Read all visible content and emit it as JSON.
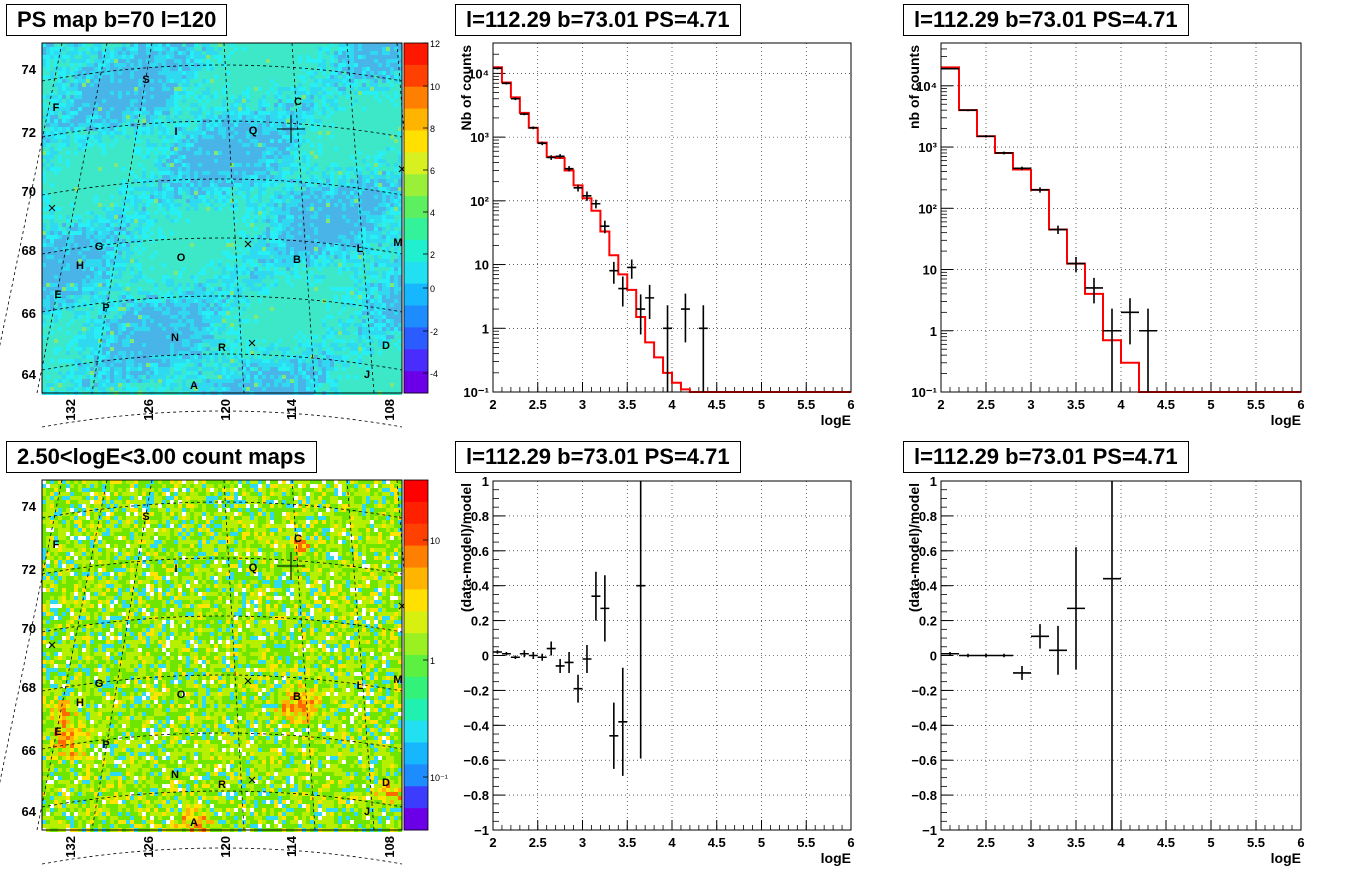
{
  "maps": [
    {
      "title": "PS map b=70 l=120",
      "lat_ticks": [
        "74",
        "72",
        "70",
        "68",
        "66",
        "64"
      ],
      "lon_ticks": [
        "132",
        "126",
        "120",
        "114",
        "108"
      ],
      "colorbar_ticks": [
        "12",
        "10",
        "8",
        "6",
        "4",
        "2",
        "0",
        "-2",
        "-4"
      ],
      "source_labels": [
        "S",
        "F",
        "C",
        "I",
        "Q",
        "G",
        "H",
        "O",
        "B",
        "L",
        "M",
        "E",
        "P",
        "N",
        "R",
        "D",
        "A",
        "J"
      ],
      "palette": "blue-cyan-red"
    },
    {
      "title": "2.50<logE<3.00 count maps",
      "lat_ticks": [
        "74",
        "72",
        "70",
        "68",
        "66",
        "64"
      ],
      "lon_ticks": [
        "132",
        "126",
        "120",
        "114",
        "108"
      ],
      "colorbar_ticks": [
        "10",
        "1",
        "10⁻¹"
      ],
      "source_labels": [
        "S",
        "F",
        "C",
        "I",
        "Q",
        "G",
        "H",
        "O",
        "B",
        "L",
        "M",
        "E",
        "P",
        "N",
        "R",
        "D",
        "A",
        "J"
      ],
      "palette": "green-yellow-red"
    }
  ],
  "chart_data": [
    {
      "type": "line",
      "title": "l=112.29 b=73.01 PS=4.71",
      "xlabel": "logE",
      "ylabel": "Nb of counts",
      "xlim": [
        2,
        6
      ],
      "ylim": [
        0.1,
        30000
      ],
      "yscale": "log",
      "x_ticks": [
        "2",
        "2.5",
        "3",
        "3.5",
        "4",
        "4.5",
        "5",
        "5.5",
        "6"
      ],
      "y_ticks": [
        {
          "v": 0.1,
          "label": "10⁻¹"
        },
        {
          "v": 1,
          "label": "1"
        },
        {
          "v": 10,
          "label": "10"
        },
        {
          "v": 100,
          "label": "10²"
        },
        {
          "v": 1000,
          "label": "10³"
        },
        {
          "v": 10000,
          "label": "10⁴"
        }
      ],
      "grid": true,
      "model_color": "#ff0000",
      "data_points": [
        {
          "x": 2.05,
          "y": 12000,
          "ylo": 11500,
          "yhi": 12500
        },
        {
          "x": 2.15,
          "y": 7000,
          "ylo": 6700,
          "yhi": 7300
        },
        {
          "x": 2.25,
          "y": 4000,
          "ylo": 3800,
          "yhi": 4200
        },
        {
          "x": 2.35,
          "y": 2300,
          "ylo": 2200,
          "yhi": 2400
        },
        {
          "x": 2.45,
          "y": 1400,
          "ylo": 1330,
          "yhi": 1470
        },
        {
          "x": 2.55,
          "y": 800,
          "ylo": 750,
          "yhi": 850
        },
        {
          "x": 2.65,
          "y": 480,
          "ylo": 440,
          "yhi": 520
        },
        {
          "x": 2.75,
          "y": 500,
          "ylo": 460,
          "yhi": 540
        },
        {
          "x": 2.85,
          "y": 320,
          "ylo": 290,
          "yhi": 350
        },
        {
          "x": 2.95,
          "y": 160,
          "ylo": 140,
          "yhi": 180
        },
        {
          "x": 3.05,
          "y": 120,
          "ylo": 100,
          "yhi": 140
        },
        {
          "x": 3.15,
          "y": 90,
          "ylo": 76,
          "yhi": 104
        },
        {
          "x": 3.25,
          "y": 40,
          "ylo": 31,
          "yhi": 49
        },
        {
          "x": 3.35,
          "y": 8,
          "ylo": 5,
          "yhi": 11
        },
        {
          "x": 3.45,
          "y": 4.2,
          "ylo": 2.2,
          "yhi": 6.5
        },
        {
          "x": 3.55,
          "y": 9,
          "ylo": 6,
          "yhi": 12
        },
        {
          "x": 3.65,
          "y": 2,
          "ylo": 0.8,
          "yhi": 3.4
        },
        {
          "x": 3.75,
          "y": 3,
          "ylo": 1.4,
          "yhi": 4.8
        },
        {
          "x": 3.95,
          "y": 1,
          "ylo": 0.1,
          "yhi": 2.3
        },
        {
          "x": 4.15,
          "y": 2,
          "ylo": 0.6,
          "yhi": 3.5
        },
        {
          "x": 4.35,
          "y": 1,
          "ylo": 0.1,
          "yhi": 2.3
        }
      ],
      "model_steps": [
        {
          "x0": 2.0,
          "x1": 2.1,
          "y": 12500
        },
        {
          "x0": 2.1,
          "x1": 2.2,
          "y": 7200
        },
        {
          "x0": 2.2,
          "x1": 2.3,
          "y": 4200
        },
        {
          "x0": 2.3,
          "x1": 2.4,
          "y": 2400
        },
        {
          "x0": 2.4,
          "x1": 2.5,
          "y": 1400
        },
        {
          "x0": 2.5,
          "x1": 2.6,
          "y": 820
        },
        {
          "x0": 2.6,
          "x1": 2.7,
          "y": 490
        },
        {
          "x0": 2.7,
          "x1": 2.8,
          "y": 470
        },
        {
          "x0": 2.8,
          "x1": 2.9,
          "y": 300
        },
        {
          "x0": 2.9,
          "x1": 3.0,
          "y": 175
        },
        {
          "x0": 3.0,
          "x1": 3.1,
          "y": 110
        },
        {
          "x0": 3.1,
          "x1": 3.2,
          "y": 70
        },
        {
          "x0": 3.2,
          "x1": 3.3,
          "y": 33
        },
        {
          "x0": 3.3,
          "x1": 3.4,
          "y": 14
        },
        {
          "x0": 3.4,
          "x1": 3.5,
          "y": 7
        },
        {
          "x0": 3.5,
          "x1": 3.6,
          "y": 4
        },
        {
          "x0": 3.6,
          "x1": 3.7,
          "y": 1.5
        },
        {
          "x0": 3.7,
          "x1": 3.8,
          "y": 0.6
        },
        {
          "x0": 3.8,
          "x1": 3.9,
          "y": 0.35
        },
        {
          "x0": 3.9,
          "x1": 4.0,
          "y": 0.2
        },
        {
          "x0": 4.0,
          "x1": 4.1,
          "y": 0.14
        },
        {
          "x0": 4.1,
          "x1": 4.2,
          "y": 0.11
        },
        {
          "x0": 4.2,
          "x1": 6.0,
          "y": 0.1
        }
      ]
    },
    {
      "type": "line",
      "title": "l=112.29 b=73.01 PS=4.71",
      "xlabel": "logE",
      "ylabel": "nb of counts",
      "xlim": [
        2,
        6
      ],
      "ylim": [
        0.1,
        50000
      ],
      "yscale": "log",
      "x_ticks": [
        "2",
        "2.5",
        "3",
        "3.5",
        "4",
        "4.5",
        "5",
        "5.5",
        "6"
      ],
      "y_ticks": [
        {
          "v": 0.1,
          "label": "10⁻¹"
        },
        {
          "v": 1,
          "label": "1"
        },
        {
          "v": 10,
          "label": "10"
        },
        {
          "v": 100,
          "label": "10²"
        },
        {
          "v": 1000,
          "label": "10³"
        },
        {
          "v": 10000,
          "label": "10⁴"
        }
      ],
      "grid": true,
      "model_color": "#ff0000",
      "data_points": [
        {
          "x": 2.1,
          "y": 19000,
          "ylo": 18500,
          "yhi": 19500
        },
        {
          "x": 2.3,
          "y": 4000,
          "ylo": 3850,
          "yhi": 4150
        },
        {
          "x": 2.5,
          "y": 1500,
          "ylo": 1430,
          "yhi": 1570
        },
        {
          "x": 2.7,
          "y": 800,
          "ylo": 760,
          "yhi": 840
        },
        {
          "x": 2.9,
          "y": 450,
          "ylo": 420,
          "yhi": 480
        },
        {
          "x": 3.1,
          "y": 200,
          "ylo": 180,
          "yhi": 220
        },
        {
          "x": 3.3,
          "y": 45,
          "ylo": 38,
          "yhi": 52
        },
        {
          "x": 3.5,
          "y": 12.5,
          "ylo": 9,
          "yhi": 16
        },
        {
          "x": 3.7,
          "y": 5,
          "ylo": 2.8,
          "yhi": 7.3
        },
        {
          "x": 3.9,
          "y": 1,
          "ylo": 0.1,
          "yhi": 2.3
        },
        {
          "x": 4.1,
          "y": 2,
          "ylo": 0.6,
          "yhi": 3.4
        },
        {
          "x": 4.3,
          "y": 1,
          "ylo": 0.1,
          "yhi": 2.3
        }
      ],
      "model_steps": [
        {
          "x0": 2.0,
          "x1": 2.2,
          "y": 20000
        },
        {
          "x0": 2.2,
          "x1": 2.4,
          "y": 4000
        },
        {
          "x0": 2.4,
          "x1": 2.6,
          "y": 1500
        },
        {
          "x0": 2.6,
          "x1": 2.8,
          "y": 800
        },
        {
          "x0": 2.8,
          "x1": 3.0,
          "y": 430
        },
        {
          "x0": 3.0,
          "x1": 3.2,
          "y": 200
        },
        {
          "x0": 3.2,
          "x1": 3.4,
          "y": 45
        },
        {
          "x0": 3.4,
          "x1": 3.6,
          "y": 12.5
        },
        {
          "x0": 3.6,
          "x1": 3.8,
          "y": 4
        },
        {
          "x0": 3.8,
          "x1": 4.0,
          "y": 0.7
        },
        {
          "x0": 4.0,
          "x1": 4.2,
          "y": 0.3
        },
        {
          "x0": 4.2,
          "x1": 6.0,
          "y": 0.1
        }
      ]
    },
    {
      "type": "scatter",
      "title": "l=112.29 b=73.01 PS=4.71",
      "xlabel": "logE",
      "ylabel": "(data-model)/model",
      "xlim": [
        2,
        6
      ],
      "ylim": [
        -1,
        1
      ],
      "x_ticks": [
        "2",
        "2.5",
        "3",
        "3.5",
        "4",
        "4.5",
        "5",
        "5.5",
        "6"
      ],
      "y_ticks": [
        {
          "v": 1,
          "label": "1"
        },
        {
          "v": 0.8,
          "label": "0.8"
        },
        {
          "v": 0.6,
          "label": "0.6"
        },
        {
          "v": 0.4,
          "label": "0.4"
        },
        {
          "v": 0.2,
          "label": "0.2"
        },
        {
          "v": 0,
          "label": "0"
        },
        {
          "v": -0.2,
          "label": "−0.2"
        },
        {
          "v": -0.4,
          "label": "−0.4"
        },
        {
          "v": -0.6,
          "label": "−0.6"
        },
        {
          "v": -0.8,
          "label": "−0.8"
        },
        {
          "v": -1,
          "label": "−1"
        }
      ],
      "grid": true,
      "data_points": [
        {
          "x": 2.05,
          "y": 0.02,
          "ylo": 0.01,
          "yhi": 0.03
        },
        {
          "x": 2.15,
          "y": 0.01,
          "ylo": 0.0,
          "yhi": 0.02
        },
        {
          "x": 2.25,
          "y": -0.01,
          "ylo": -0.02,
          "yhi": 0.0
        },
        {
          "x": 2.35,
          "y": 0.01,
          "ylo": -0.01,
          "yhi": 0.03
        },
        {
          "x": 2.45,
          "y": 0.0,
          "ylo": -0.02,
          "yhi": 0.02
        },
        {
          "x": 2.55,
          "y": -0.01,
          "ylo": -0.03,
          "yhi": 0.01
        },
        {
          "x": 2.65,
          "y": 0.04,
          "ylo": 0.0,
          "yhi": 0.08
        },
        {
          "x": 2.75,
          "y": -0.06,
          "ylo": -0.1,
          "yhi": -0.02
        },
        {
          "x": 2.85,
          "y": -0.04,
          "ylo": -0.1,
          "yhi": 0.02
        },
        {
          "x": 2.95,
          "y": -0.19,
          "ylo": -0.27,
          "yhi": -0.11
        },
        {
          "x": 3.05,
          "y": -0.02,
          "ylo": -0.1,
          "yhi": 0.06
        },
        {
          "x": 3.15,
          "y": 0.34,
          "ylo": 0.2,
          "yhi": 0.48
        },
        {
          "x": 3.25,
          "y": 0.27,
          "ylo": 0.08,
          "yhi": 0.46
        },
        {
          "x": 3.35,
          "y": -0.46,
          "ylo": -0.65,
          "yhi": -0.27
        },
        {
          "x": 3.45,
          "y": -0.38,
          "ylo": -0.69,
          "yhi": -0.07
        },
        {
          "x": 3.65,
          "y": 0.4,
          "ylo": -0.59,
          "yhi": 1.0
        }
      ]
    },
    {
      "type": "scatter",
      "title": "l=112.29 b=73.01 PS=4.71",
      "xlabel": "logE",
      "ylabel": "(data-model)/model",
      "xlim": [
        2,
        6
      ],
      "ylim": [
        -1,
        1
      ],
      "x_ticks": [
        "2",
        "2.5",
        "3",
        "3.5",
        "4",
        "4.5",
        "5",
        "5.5",
        "6"
      ],
      "y_ticks": [
        {
          "v": 1,
          "label": "1"
        },
        {
          "v": 0.8,
          "label": "0.8"
        },
        {
          "v": 0.6,
          "label": "0.6"
        },
        {
          "v": 0.4,
          "label": "0.4"
        },
        {
          "v": 0.2,
          "label": "0.2"
        },
        {
          "v": 0,
          "label": "0"
        },
        {
          "v": -0.2,
          "label": "−0.2"
        },
        {
          "v": -0.4,
          "label": "−0.4"
        },
        {
          "v": -0.6,
          "label": "−0.6"
        },
        {
          "v": -0.8,
          "label": "−0.8"
        },
        {
          "v": -1,
          "label": "−1"
        }
      ],
      "grid": true,
      "data_points": [
        {
          "x": 2.1,
          "y": 0.01,
          "ylo": 0.0,
          "yhi": 0.02
        },
        {
          "x": 2.3,
          "y": 0.0,
          "ylo": -0.01,
          "yhi": 0.01
        },
        {
          "x": 2.5,
          "y": 0.0,
          "ylo": -0.01,
          "yhi": 0.01
        },
        {
          "x": 2.7,
          "y": 0.0,
          "ylo": -0.01,
          "yhi": 0.01
        },
        {
          "x": 2.9,
          "y": -0.1,
          "ylo": -0.14,
          "yhi": -0.06
        },
        {
          "x": 3.1,
          "y": 0.11,
          "ylo": 0.04,
          "yhi": 0.18
        },
        {
          "x": 3.3,
          "y": 0.03,
          "ylo": -0.11,
          "yhi": 0.17
        },
        {
          "x": 3.5,
          "y": 0.27,
          "ylo": -0.08,
          "yhi": 0.62
        },
        {
          "x": 3.9,
          "y": 0.44,
          "ylo": -1.0,
          "yhi": 1.0
        }
      ]
    }
  ]
}
